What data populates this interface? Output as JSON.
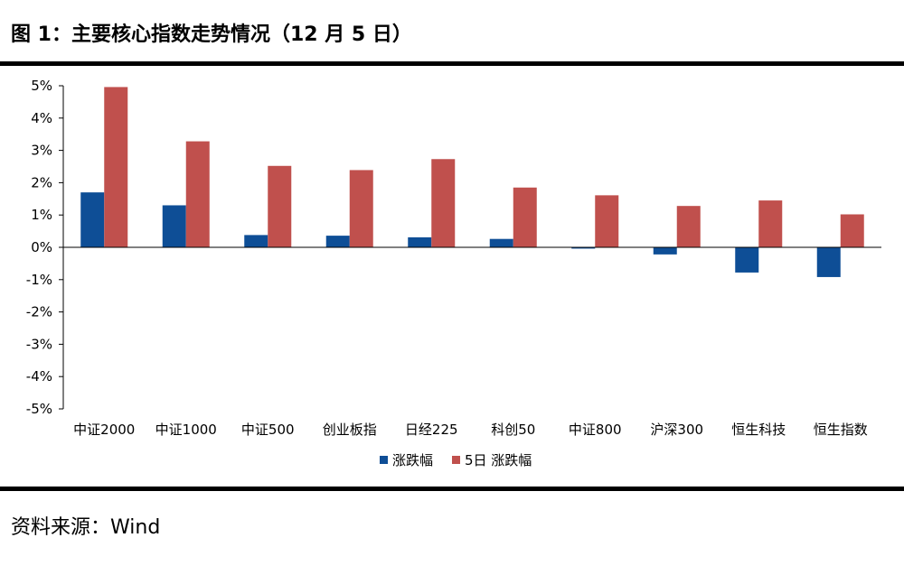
{
  "header": {
    "title": "图 1：主要核心指数走势情况（12 月 5 日）"
  },
  "footer": {
    "source_label": "资料来源：",
    "source_value": "Wind"
  },
  "colors": {
    "series1": "#0E4E96",
    "series2": "#C0504D",
    "axis": "#000000"
  },
  "chart_data": {
    "type": "bar",
    "title": "图 1：主要核心指数走势情况（12 月 5 日）",
    "categories": [
      "中证2000",
      "中证1000",
      "中证500",
      "创业板指",
      "日经225",
      "科创50",
      "中证800",
      "沪深300",
      "恒生科技",
      "恒生指数"
    ],
    "series": [
      {
        "name": "涨跌幅",
        "values": [
          1.7,
          1.3,
          0.38,
          0.36,
          0.31,
          0.26,
          -0.04,
          -0.22,
          -0.78,
          -0.92
        ]
      },
      {
        "name": "5日 涨跌幅",
        "values": [
          4.96,
          3.28,
          2.52,
          2.39,
          2.73,
          1.85,
          1.61,
          1.28,
          1.45,
          1.02
        ]
      }
    ],
    "ylim": [
      -5,
      5
    ],
    "yticks": [
      5,
      4,
      3,
      2,
      1,
      0,
      -1,
      -2,
      -3,
      -4,
      -5
    ],
    "ytick_labels": [
      "5%",
      "4%",
      "3%",
      "2%",
      "1%",
      "0%",
      "-1%",
      "-2%",
      "-3%",
      "-4%",
      "-5%"
    ],
    "xlabel": "",
    "ylabel": "",
    "legend_position": "bottom-center",
    "grid": false
  }
}
